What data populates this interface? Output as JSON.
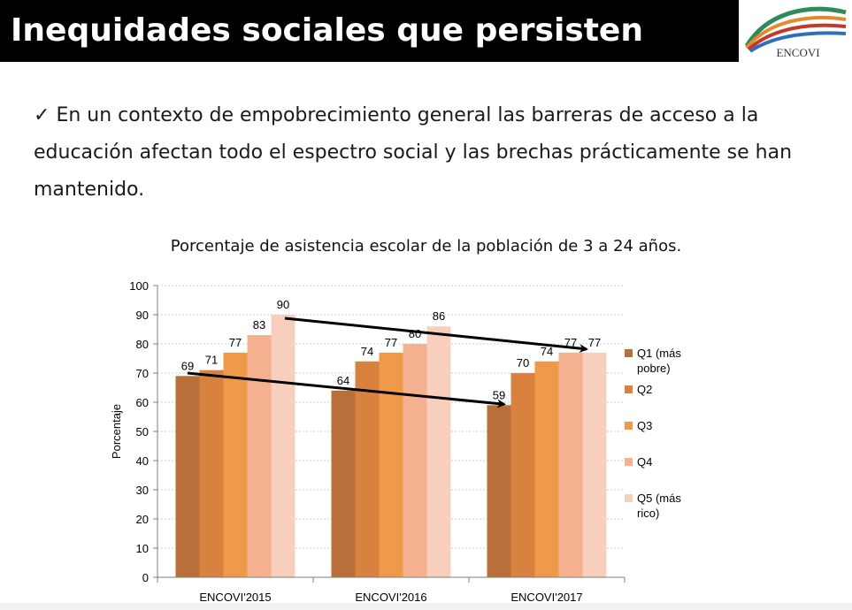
{
  "header": {
    "title": "Inequidades sociales que persisten",
    "logo_text": "ENCOVI"
  },
  "bullet": {
    "mark": "✓",
    "text": "En un contexto de empobrecimiento general las barreras de acceso a la educación afectan todo el espectro social y las brechas prácticamente se han mantenido."
  },
  "chart_data": {
    "type": "bar",
    "title": "Porcentaje de asistencia escolar de la población de 3 a 24 años.",
    "ylabel": "Porcentaje",
    "xlabel": "",
    "ylim": [
      0,
      100
    ],
    "yticks": [
      0,
      10,
      20,
      30,
      40,
      50,
      60,
      70,
      80,
      90,
      100
    ],
    "grid": true,
    "legend_position": "right",
    "categories": [
      "ENCOVI'2015",
      "ENCOVI'2016",
      "ENCOVI'2017"
    ],
    "series": [
      {
        "name": "Q1 (más pobre)",
        "values": [
          69,
          64,
          59
        ],
        "color": "#b8703a"
      },
      {
        "name": "Q2",
        "values": [
          71,
          74,
          70
        ],
        "color": "#d9823f"
      },
      {
        "name": "Q3",
        "values": [
          77,
          77,
          74
        ],
        "color": "#ef9a4a"
      },
      {
        "name": "Q4",
        "values": [
          83,
          80,
          77
        ],
        "color": "#f4b08f"
      },
      {
        "name": "Q5 (más rico)",
        "values": [
          90,
          86,
          77
        ],
        "color": "#f8cfbd"
      }
    ],
    "annotations": [
      {
        "type": "arrow",
        "from": {
          "category": "ENCOVI'2015",
          "value": 90
        },
        "to": {
          "category": "ENCOVI'2017",
          "value": 77
        }
      },
      {
        "type": "arrow",
        "from": {
          "category": "ENCOVI'2015",
          "value": 70
        },
        "to": {
          "category": "ENCOVI'2017",
          "value": 59
        }
      }
    ]
  }
}
